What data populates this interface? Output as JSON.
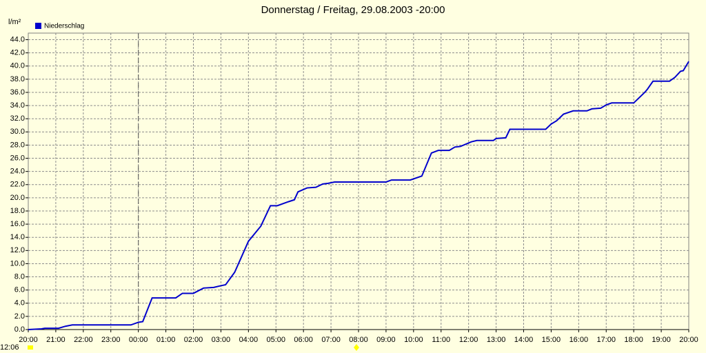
{
  "chart_data": {
    "type": "line",
    "title": "Donnerstag / Freitag, 29.08.2003  -20:00",
    "y_label": "l/m²",
    "annotation": "12:06",
    "grid": true,
    "xlim": [
      0,
      24
    ],
    "ylim": [
      0,
      45
    ],
    "xticks": [
      {
        "value": 0,
        "label": "20:00"
      },
      {
        "value": 1,
        "label": "21:00"
      },
      {
        "value": 2,
        "label": "22:00"
      },
      {
        "value": 3,
        "label": "23:00"
      },
      {
        "value": 4,
        "label": "00:00"
      },
      {
        "value": 5,
        "label": "01:00"
      },
      {
        "value": 6,
        "label": "02:00"
      },
      {
        "value": 7,
        "label": "03:00"
      },
      {
        "value": 8,
        "label": "04:00"
      },
      {
        "value": 9,
        "label": "05:00"
      },
      {
        "value": 10,
        "label": "06:00"
      },
      {
        "value": 11,
        "label": "07:00"
      },
      {
        "value": 12,
        "label": "08:00"
      },
      {
        "value": 13,
        "label": "09:00"
      },
      {
        "value": 14,
        "label": "10:00"
      },
      {
        "value": 15,
        "label": "11:00"
      },
      {
        "value": 16,
        "label": "12:00"
      },
      {
        "value": 17,
        "label": "13:00"
      },
      {
        "value": 18,
        "label": "14:00"
      },
      {
        "value": 19,
        "label": "15:00"
      },
      {
        "value": 20,
        "label": "16:00"
      },
      {
        "value": 21,
        "label": "17:00"
      },
      {
        "value": 22,
        "label": "18:00"
      },
      {
        "value": 23,
        "label": "19:00"
      },
      {
        "value": 24,
        "label": "20:00"
      }
    ],
    "yticks": [
      {
        "value": 0,
        "label": "0.0"
      },
      {
        "value": 2,
        "label": "2.0"
      },
      {
        "value": 4,
        "label": "4.0"
      },
      {
        "value": 6,
        "label": "6.0"
      },
      {
        "value": 8,
        "label": "8.0"
      },
      {
        "value": 10,
        "label": "10.0"
      },
      {
        "value": 12,
        "label": "12.0"
      },
      {
        "value": 14,
        "label": "14.0"
      },
      {
        "value": 16,
        "label": "16.0"
      },
      {
        "value": 18,
        "label": "18.0"
      },
      {
        "value": 20,
        "label": "20.0"
      },
      {
        "value": 22,
        "label": "22.0"
      },
      {
        "value": 24,
        "label": "24.0"
      },
      {
        "value": 26,
        "label": "26.0"
      },
      {
        "value": 28,
        "label": "28.0"
      },
      {
        "value": 30,
        "label": "30.0"
      },
      {
        "value": 32,
        "label": "32.0"
      },
      {
        "value": 34,
        "label": "34.0"
      },
      {
        "value": 36,
        "label": "36.0"
      },
      {
        "value": 38,
        "label": "38.0"
      },
      {
        "value": 40,
        "label": "40.0"
      },
      {
        "value": 42,
        "label": "42.0"
      },
      {
        "value": 44,
        "label": "44.0"
      }
    ],
    "x": [
      0,
      0.48,
      0.6,
      1.1,
      1.35,
      1.6,
      3.73,
      4.0,
      4.16,
      4.5,
      5.36,
      5.6,
      6.0,
      6.37,
      6.74,
      6.94,
      7.17,
      7.5,
      8.0,
      8.45,
      8.8,
      9.05,
      9.45,
      9.67,
      9.8,
      10.13,
      10.45,
      10.7,
      10.9,
      11.13,
      13.0,
      13.2,
      13.88,
      14.3,
      14.65,
      14.9,
      15.3,
      15.5,
      15.7,
      16.1,
      16.3,
      16.9,
      17.0,
      17.35,
      17.5,
      18.8,
      19.0,
      19.2,
      19.45,
      19.8,
      20.3,
      20.48,
      20.8,
      21.0,
      21.2,
      22.0,
      22.4,
      22.5,
      22.7,
      23.3,
      23.5,
      23.7,
      23.8,
      24.0
    ],
    "series": [
      {
        "name": "Niederschlag",
        "color": "#0000cc",
        "values": [
          0,
          0.1,
          0.2,
          0.2,
          0.5,
          0.7,
          0.7,
          1.1,
          1.2,
          4.8,
          4.8,
          5.5,
          5.5,
          6.3,
          6.4,
          6.6,
          6.8,
          8.7,
          13.4,
          15.7,
          18.8,
          18.8,
          19.4,
          19.7,
          20.9,
          21.5,
          21.6,
          22.1,
          22.2,
          22.4,
          22.4,
          22.7,
          22.7,
          23.3,
          26.8,
          27.2,
          27.2,
          27.7,
          27.8,
          28.5,
          28.7,
          28.7,
          29.0,
          29.1,
          30.4,
          30.4,
          31.2,
          31.7,
          32.7,
          33.2,
          33.2,
          33.5,
          33.6,
          34.1,
          34.4,
          34.4,
          36.0,
          36.5,
          37.7,
          37.7,
          38.3,
          39.2,
          39.3,
          40.7
        ]
      }
    ]
  }
}
